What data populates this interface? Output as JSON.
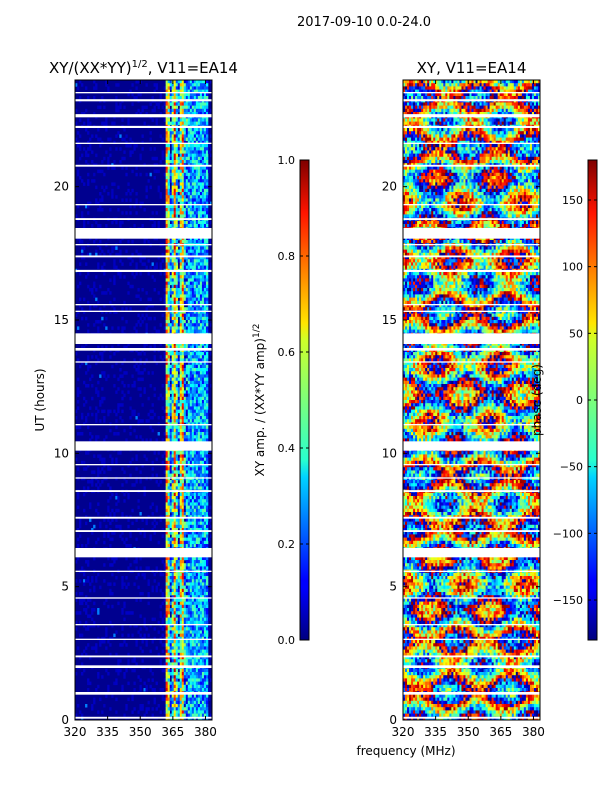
{
  "figure_title": "2017-09-10 0.0-24.0",
  "xlabel": "frequency (MHz)",
  "colors": {
    "background": "#ffffff",
    "gap": "#ffffff",
    "frame": "#000000"
  },
  "chart_data": [
    {
      "type": "heatmap",
      "title_main": "XY/(XX*YY)",
      "title_power": "1/2",
      "title_suffix": ", V11=EA14",
      "xlabel": "",
      "ylabel": "UT (hours)",
      "xlim": [
        320,
        383
      ],
      "ylim": [
        0,
        24
      ],
      "xticks": [
        "320",
        "335",
        "350",
        "365",
        "380"
      ],
      "xtick_values": [
        320,
        335,
        350,
        365,
        380
      ],
      "yticks": [
        "0",
        "5",
        "10",
        "15",
        "20"
      ],
      "ytick_values": [
        0,
        5,
        10,
        15,
        20
      ],
      "colormap": "jet",
      "colorbar": {
        "label_main": "XY amp. / (XX*YY amp)",
        "label_power": "1/2",
        "range": [
          0.0,
          1.0
        ],
        "ticks": [
          "0.0",
          "0.2",
          "0.4",
          "0.6",
          "0.8",
          "1.0"
        ],
        "tick_values": [
          0.0,
          0.2,
          0.4,
          0.6,
          0.8,
          1.0
        ]
      },
      "features": "Amplitude near 0 (dark blue) for 320-360 MHz; elevated amplitude 0.4-0.9 in channels around 362-372 MHz and weaker structure 372-380 MHz; horizontal white gaps mark flagged times.",
      "high_band_mhz": [
        362,
        372
      ],
      "mid_band_mhz": [
        372,
        381
      ]
    },
    {
      "type": "heatmap",
      "title_main": "XY, V11=EA14",
      "xlabel": "frequency (MHz)",
      "ylabel": "",
      "xlim": [
        320,
        383
      ],
      "ylim": [
        0,
        24
      ],
      "xticks": [
        "320",
        "335",
        "350",
        "365",
        "380"
      ],
      "xtick_values": [
        320,
        335,
        350,
        365,
        380
      ],
      "yticks": [
        "0",
        "5",
        "10",
        "15",
        "20"
      ],
      "ytick_values": [
        0,
        5,
        10,
        15,
        20
      ],
      "colormap": "jet",
      "colorbar": {
        "label_main": "phase (deg)",
        "range": [
          -180,
          180
        ],
        "ticks": [
          "−150",
          "−100",
          "−50",
          "0",
          "50",
          "100",
          "150"
        ],
        "tick_values": [
          -150,
          -100,
          -50,
          0,
          50,
          100,
          150
        ]
      },
      "features": "Phase varies across full range -180 to 180 deg with banded structure; same flagged-time gaps as amplitude panel."
    }
  ],
  "flag_gaps_hours": [
    [
      0.05,
      0.12
    ],
    [
      0.95,
      1.05
    ],
    [
      1.95,
      2.05
    ],
    [
      2.35,
      2.42
    ],
    [
      3.0,
      3.05
    ],
    [
      3.55,
      3.6
    ],
    [
      4.55,
      4.6
    ],
    [
      5.55,
      5.6
    ],
    [
      6.1,
      6.45
    ],
    [
      7.05,
      7.12
    ],
    [
      7.55,
      7.62
    ],
    [
      8.55,
      8.62
    ],
    [
      9.05,
      9.1
    ],
    [
      9.55,
      9.6
    ],
    [
      10.1,
      10.45
    ],
    [
      11.05,
      11.1
    ],
    [
      13.4,
      13.45
    ],
    [
      13.85,
      13.95
    ],
    [
      14.1,
      14.5
    ],
    [
      15.3,
      15.35
    ],
    [
      15.55,
      15.6
    ],
    [
      16.8,
      16.88
    ],
    [
      17.35,
      17.42
    ],
    [
      17.8,
      17.85
    ],
    [
      18.05,
      18.45
    ],
    [
      18.75,
      18.82
    ],
    [
      19.3,
      19.35
    ],
    [
      20.75,
      20.82
    ],
    [
      21.6,
      21.65
    ],
    [
      22.2,
      22.28
    ],
    [
      22.6,
      22.72
    ],
    [
      23.2,
      23.28
    ],
    [
      23.5,
      23.55
    ]
  ]
}
